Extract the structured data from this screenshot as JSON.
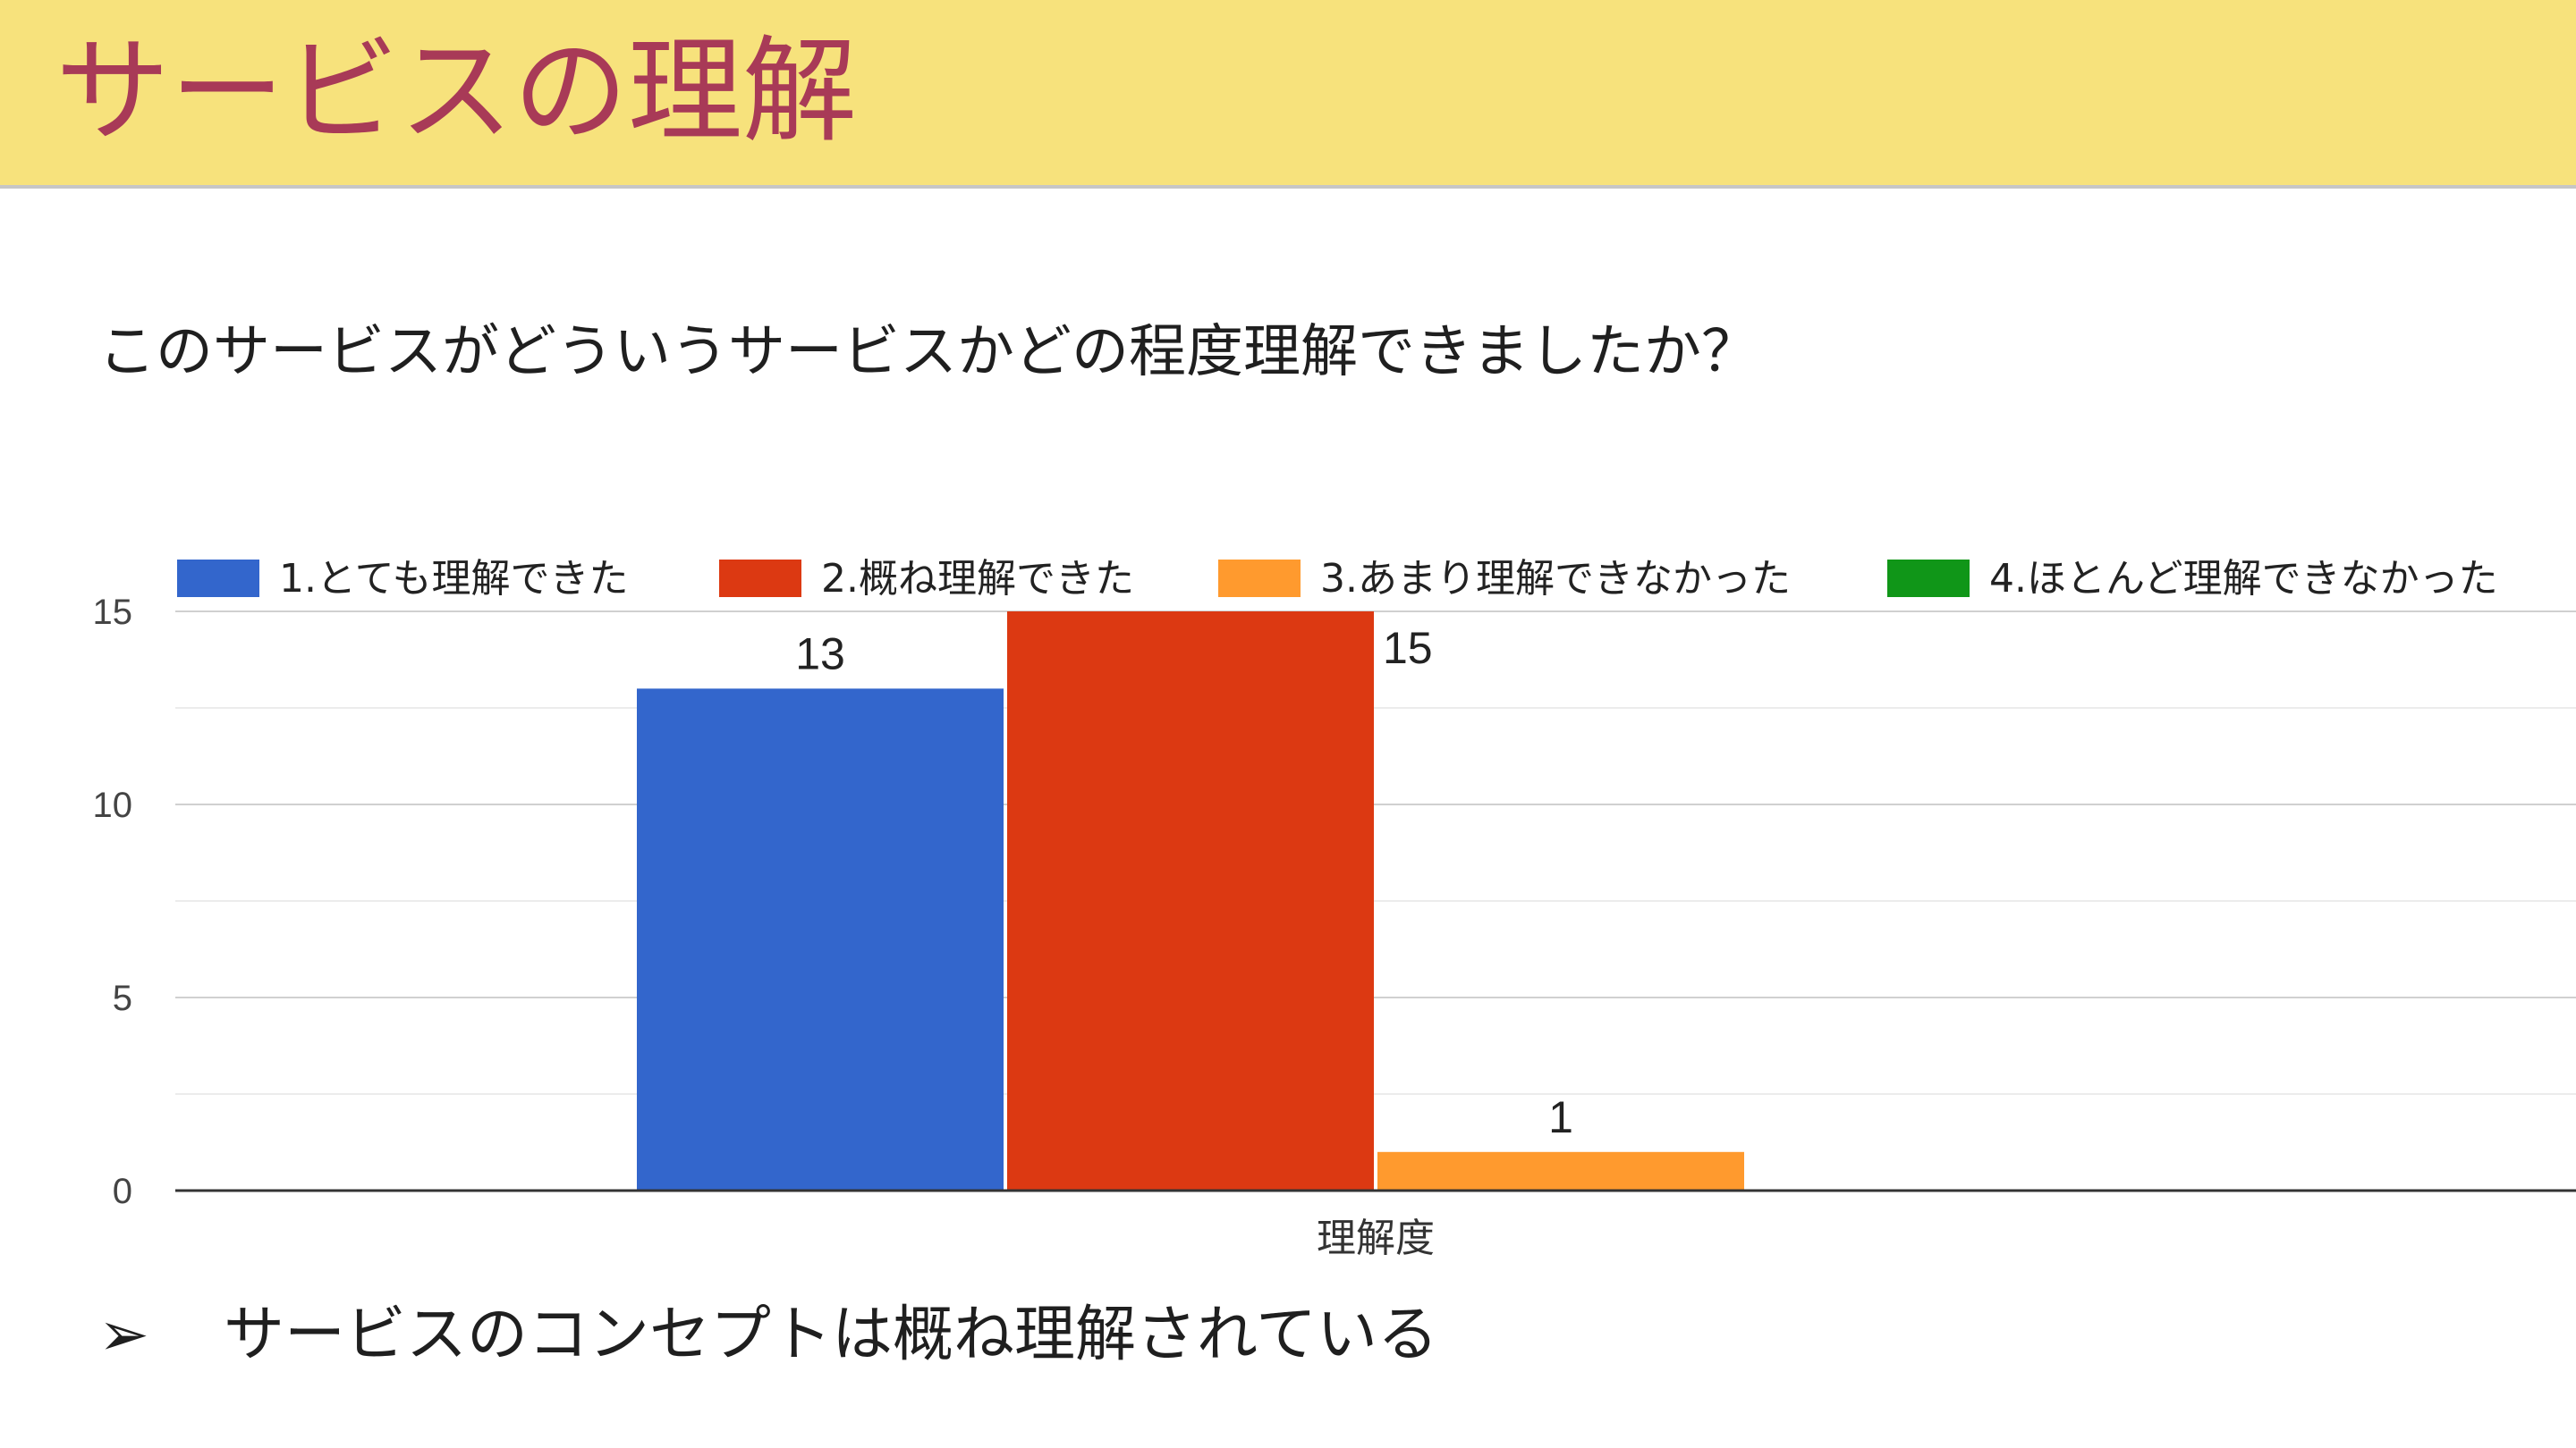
{
  "slide": {
    "title": "サービスの理解",
    "question": "このサービスがどういうサービスかどの程度理解できましたか？",
    "conclusion_bullet": "➢",
    "conclusion_text": "サービスのコンセプトは概ね理解されている"
  },
  "colors": {
    "header_band": "#f7e27c",
    "title_text": "#a83a57"
  },
  "chart_data": {
    "type": "bar",
    "title": "",
    "xlabel": "",
    "ylabel": "",
    "categories": [
      "理解度"
    ],
    "series": [
      {
        "name": "1.とても理解できた",
        "values": [
          13
        ],
        "color": "#3366cc"
      },
      {
        "name": "2.概ね理解できた",
        "values": [
          15
        ],
        "color": "#dc3912"
      },
      {
        "name": "3.あまり理解できなかった",
        "values": [
          1
        ],
        "color": "#ff9a2e"
      },
      {
        "name": "4.ほとんど理解できなかった",
        "values": [
          0
        ],
        "color": "#109618"
      }
    ],
    "ylim": [
      0,
      15
    ],
    "yticks": [
      0,
      5,
      10,
      15
    ],
    "grid": true,
    "legend_position": "top",
    "data_labels": true
  }
}
